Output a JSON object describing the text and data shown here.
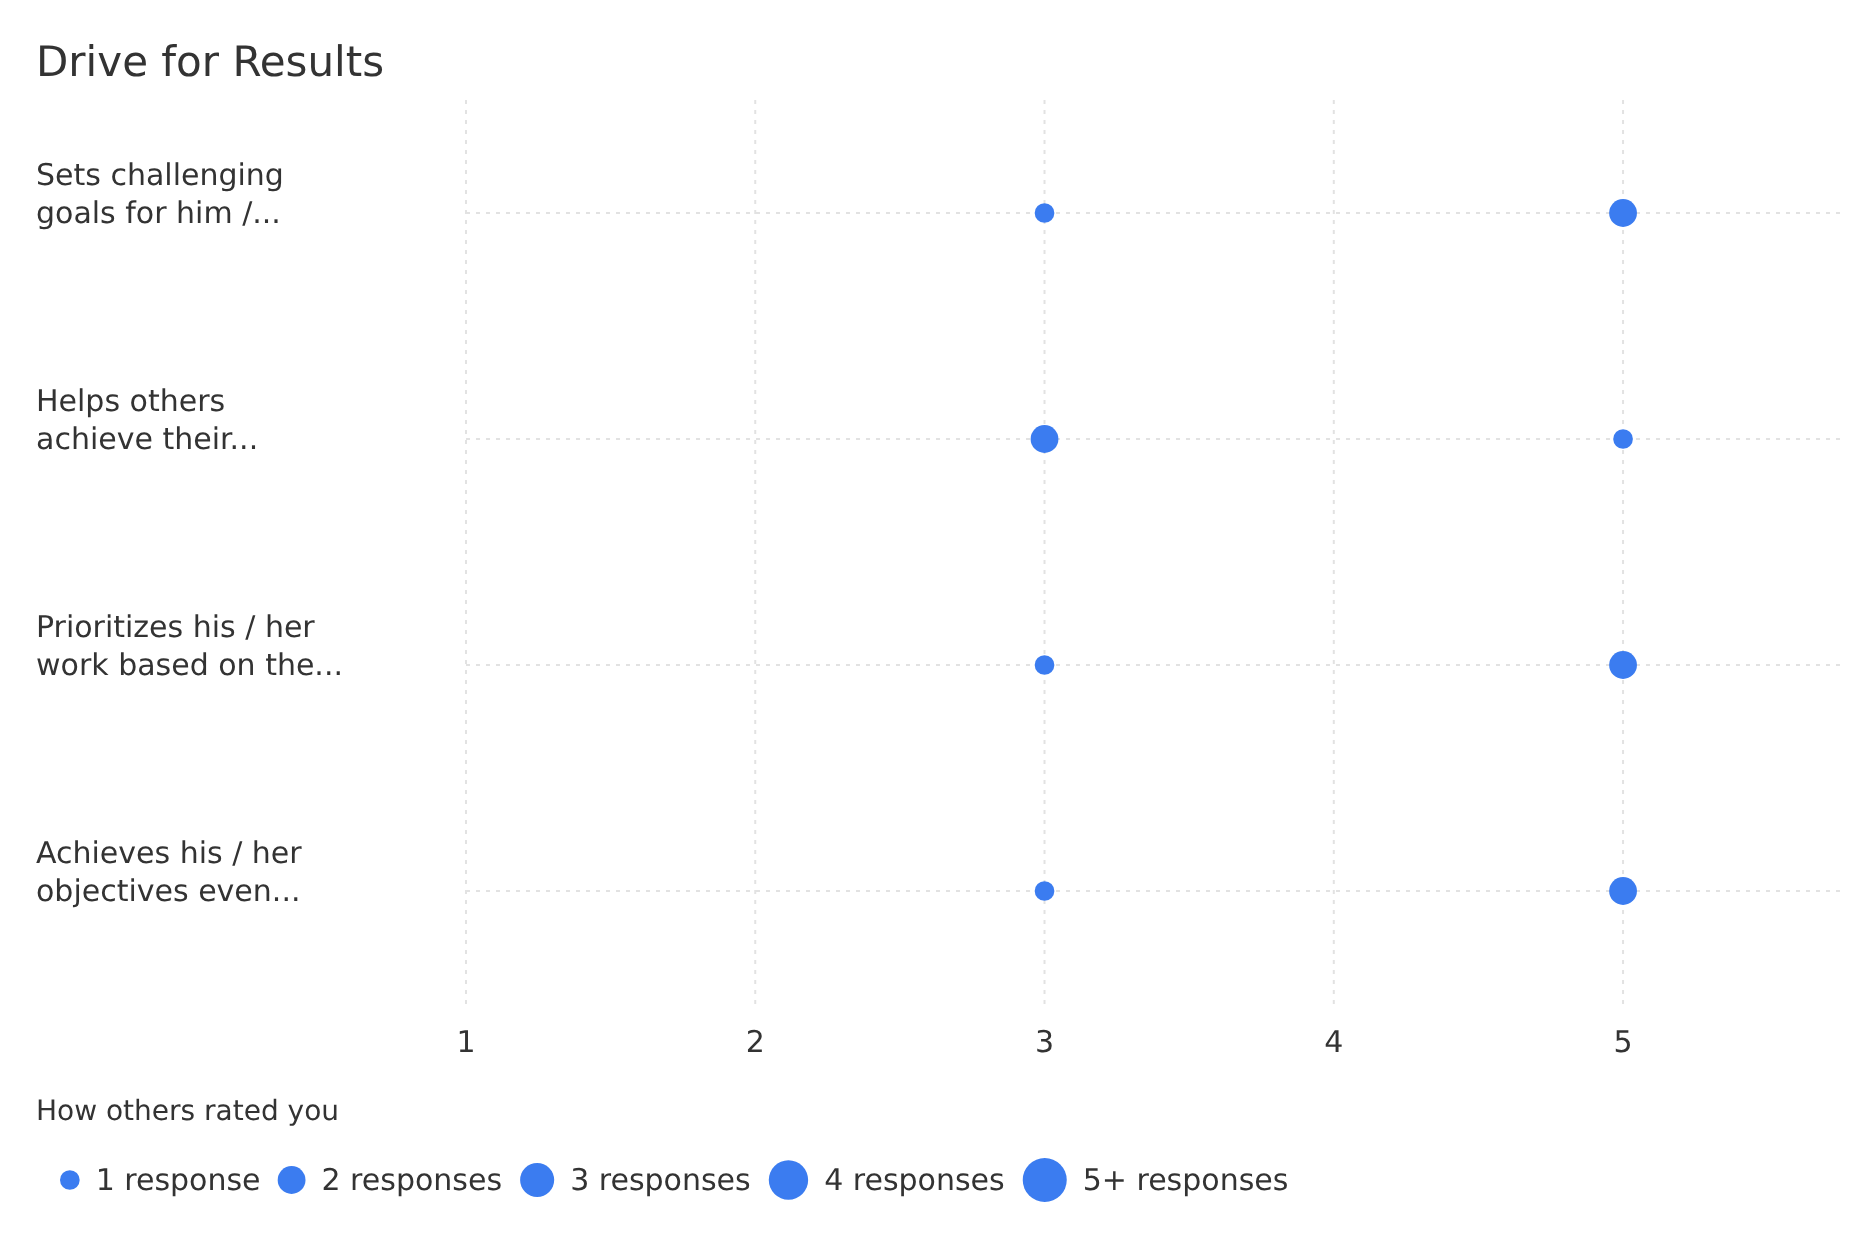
{
  "chart_data": {
    "type": "bubble",
    "title": "Drive for Results",
    "orientation": "horizontal",
    "legend_title": "How others rated you",
    "categories": [
      "Sets challenging\ngoals for him /...",
      "Helps others\nachieve their...",
      "Prioritizes his / her\nwork based on the...",
      "Achieves his / her\nobjectives even..."
    ],
    "series": [
      {
        "color": "#3b7cf0",
        "values": [
          3,
          3,
          3,
          3
        ],
        "sizes": [
          1,
          2,
          1,
          1
        ]
      },
      {
        "color": "#3b7cf0",
        "values": [
          5,
          5,
          5,
          5
        ],
        "sizes": [
          2,
          1,
          2,
          2
        ]
      }
    ],
    "size_legend": [
      {
        "value": 1,
        "label": "1 response"
      },
      {
        "value": 2,
        "label": "2 responses"
      },
      {
        "value": 3,
        "label": "3 responses"
      },
      {
        "value": 4,
        "label": "4 responses"
      },
      {
        "value": 5,
        "label": "5+ responses"
      }
    ],
    "xlim": [
      1,
      5.75
    ],
    "xticks": [
      1,
      2,
      3,
      4,
      5
    ],
    "grid": true
  }
}
